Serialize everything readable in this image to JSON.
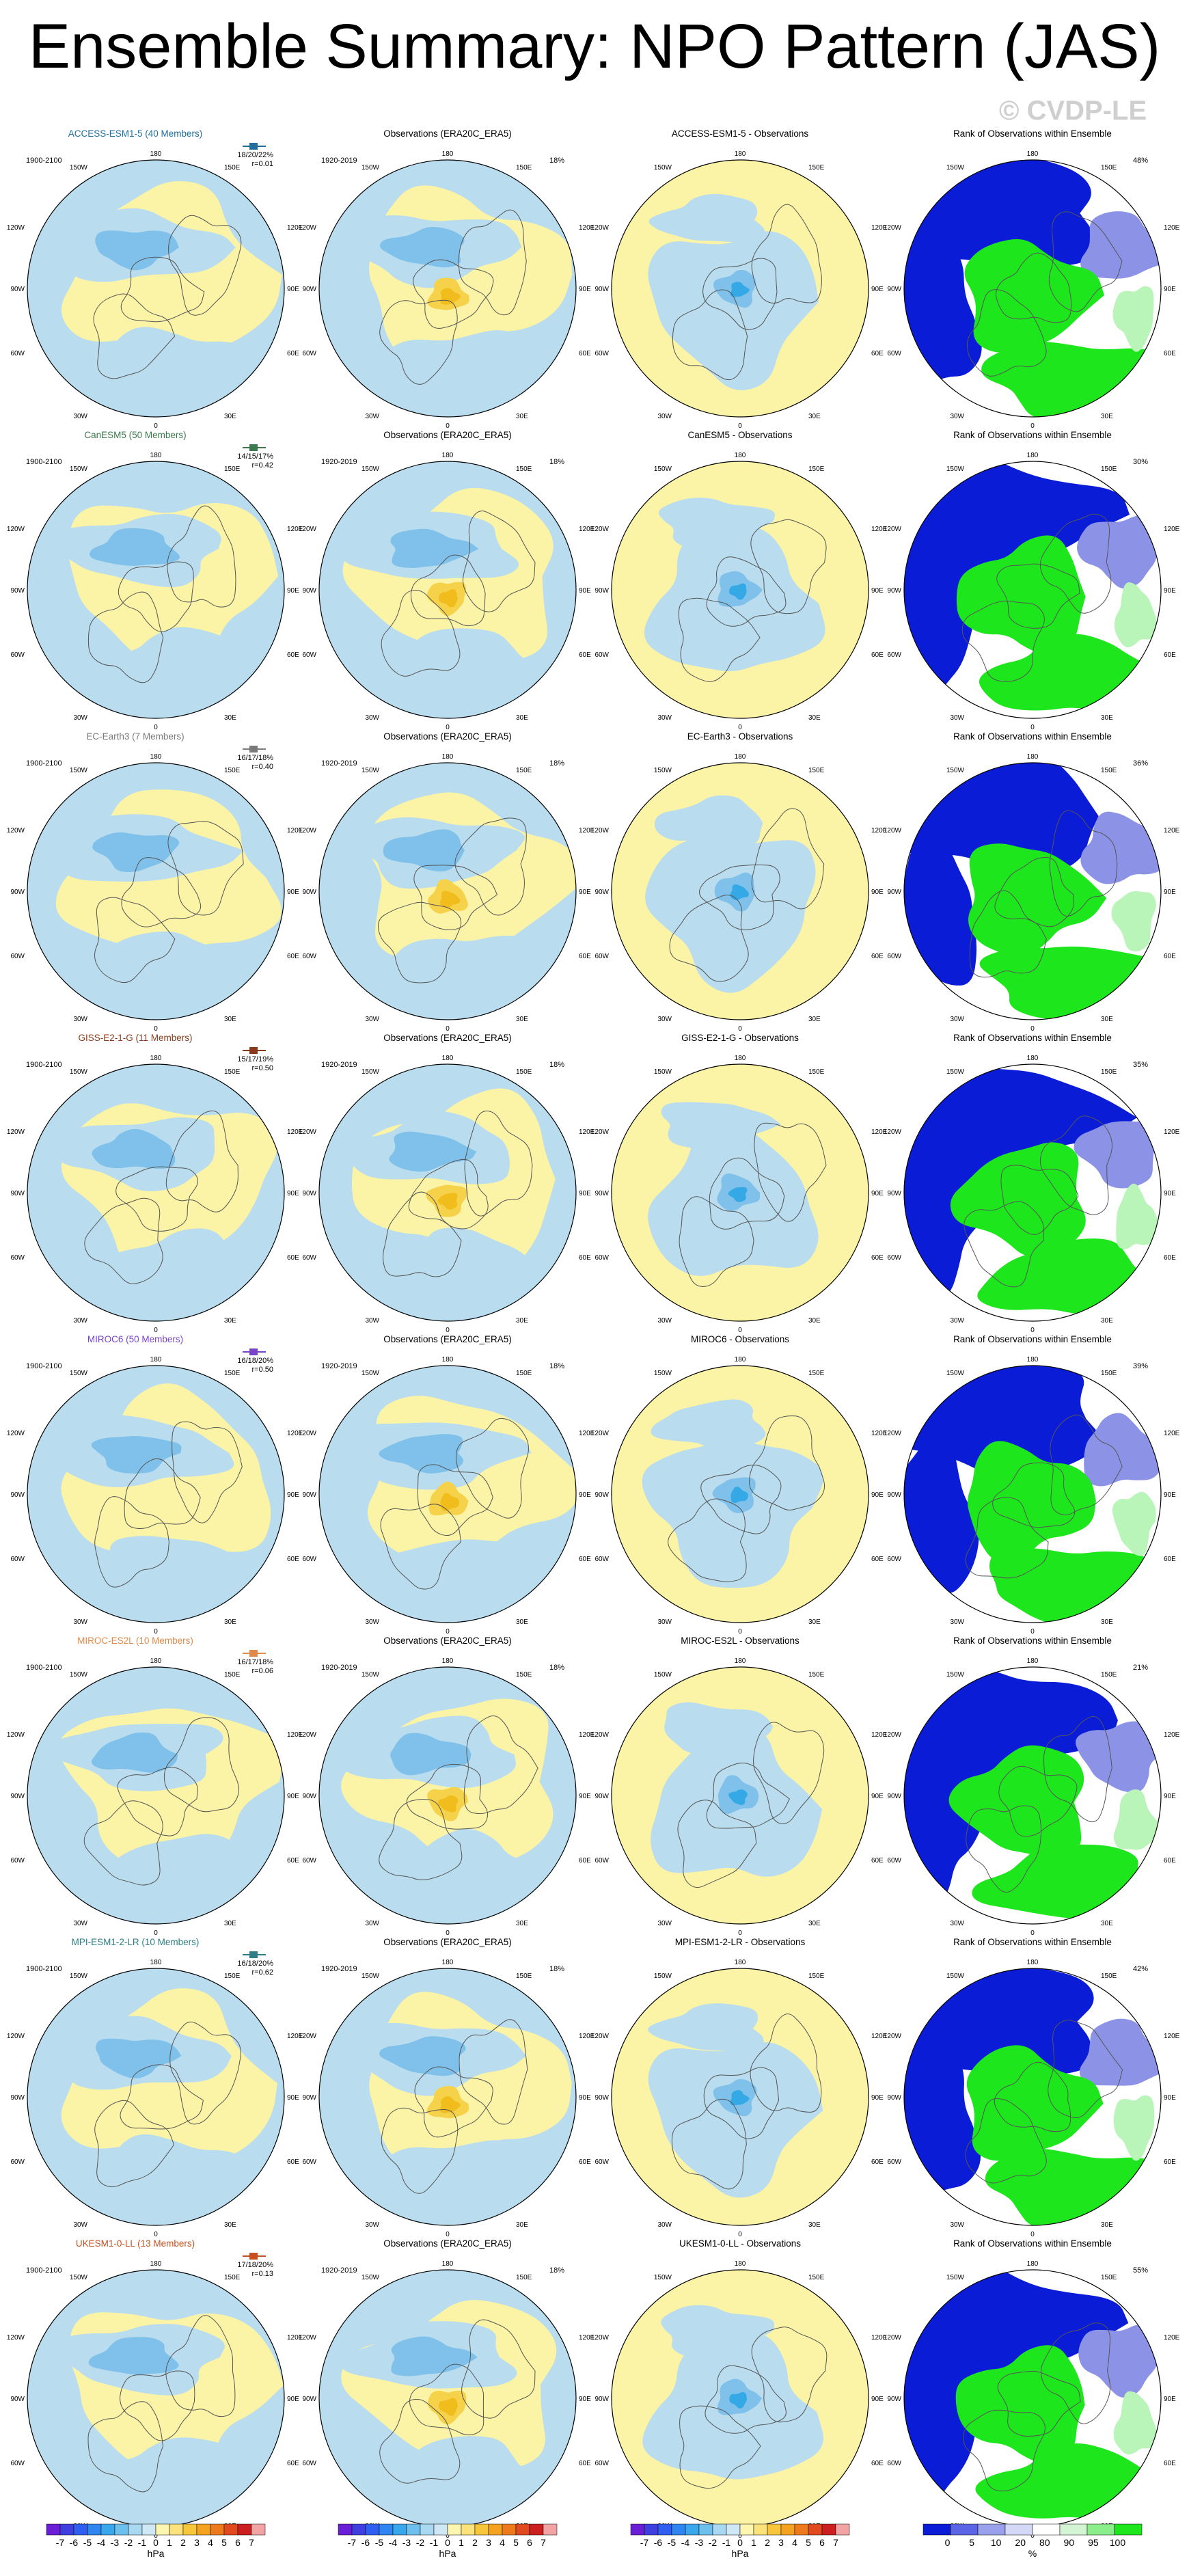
{
  "title": "Ensemble Summary: NPO Pattern (JAS)",
  "watermark": "© CVDP-LE",
  "colors": {
    "negative": "#b9dcee",
    "positive": "#fbf3a6",
    "neg_strong": "#7fc1ea",
    "neg_core": "#35a8e6",
    "pos_strong": "#f5d24a",
    "pos_core": "#f1bd1c",
    "rank_low": "#0a1cd6",
    "rank_high": "#1de61d",
    "rank_mid_low": "#8c93e6",
    "rank_mid_high": "#b9f5b9",
    "coast": "#555555"
  },
  "chart_data": {
    "type": "heatmap",
    "panel_titles": {
      "observations": "Observations (ERA20C_ERA5)",
      "rank": "Rank of Observations within Ensemble",
      "difference_suffix": " - Observations"
    },
    "model_period": "1900-2100",
    "obs_period": "1920-2019",
    "obs_variance": "18%",
    "longitude_labels": [
      "180",
      "150W",
      "150E",
      "120W",
      "120E",
      "90W",
      "90E",
      "60W",
      "60E",
      "30W",
      "30E",
      "0"
    ],
    "rows": [
      {
        "model": "ACCESS-ESM1-5 (40 Members)",
        "diff_title": "ACCESS-ESM1-5 - Observations",
        "color": "#1f6f9f",
        "stats": "18/20/22%",
        "corr": "r=0.01",
        "rank_pct": "48%"
      },
      {
        "model": "CanESM5 (50 Members)",
        "diff_title": "CanESM5 - Observations",
        "color": "#3c7a4e",
        "stats": "14/15/17%",
        "corr": "r=0.42",
        "rank_pct": "30%"
      },
      {
        "model": "EC-Earth3 (7 Members)",
        "diff_title": "EC-Earth3 - Observations",
        "color": "#7a7a7a",
        "stats": "16/17/18%",
        "corr": "r=0.40",
        "rank_pct": "36%"
      },
      {
        "model": "GISS-E2-1-G (11 Members)",
        "diff_title": "GISS-E2-1-G - Observations",
        "color": "#8a3a1a",
        "stats": "15/17/19%",
        "corr": "r=0.50",
        "rank_pct": "35%"
      },
      {
        "model": "MIROC6 (50 Members)",
        "diff_title": "MIROC6 - Observations",
        "color": "#7a44c8",
        "stats": "16/18/20%",
        "corr": "r=0.50",
        "rank_pct": "39%"
      },
      {
        "model": "MIROC-ES2L (10 Members)",
        "diff_title": "MIROC-ES2L - Observations",
        "color": "#e08a4a",
        "stats": "16/17/18%",
        "corr": "r=0.06",
        "rank_pct": "21%"
      },
      {
        "model": "MPI-ESM1-2-LR (10 Members)",
        "diff_title": "MPI-ESM1-2-LR - Observations",
        "color": "#2f7f86",
        "stats": "16/18/20%",
        "corr": "r=0.62",
        "rank_pct": "42%"
      },
      {
        "model": "UKESM1-0-LL (13 Members)",
        "diff_title": "UKESM1-0-LL - Observations",
        "color": "#c8501e",
        "stats": "17/18/20%",
        "corr": "r=0.13",
        "rank_pct": "55%"
      }
    ],
    "colorbar": {
      "ticks": [
        "-7",
        "-6",
        "-5",
        "-4",
        "-3",
        "-2",
        "-1",
        "0",
        "1",
        "2",
        "3",
        "4",
        "5",
        "6",
        "7"
      ],
      "colors": [
        "#6a1fd6",
        "#3f3fe0",
        "#2f5ff0",
        "#2f86f0",
        "#3aa6ec",
        "#6cc0ee",
        "#a8d8f2",
        "#cfe8f5",
        "#fdf6b0",
        "#fbe27a",
        "#f7c63a",
        "#f4a21f",
        "#ee7a1e",
        "#e04a1e",
        "#cc1f1f",
        "#f2a3a3"
      ],
      "units": "hPa"
    },
    "rank_colorbar": {
      "ticks": [
        "0",
        "5",
        "10",
        "20",
        "80",
        "90",
        "95",
        "100"
      ],
      "colors": [
        "#0a1cd6",
        "#5a64e4",
        "#9aa0ec",
        "#d4d7f5",
        "#ffffff",
        "#d4f5d4",
        "#8aee8a",
        "#1de61d"
      ],
      "units": "%"
    }
  }
}
